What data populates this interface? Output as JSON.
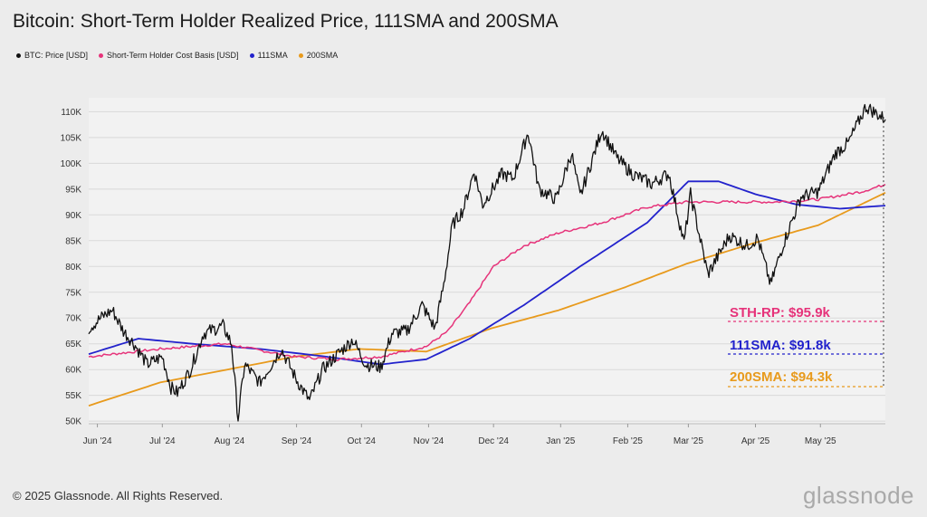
{
  "title": "Bitcoin: Short-Term Holder Realized Price, 111SMA and 200SMA",
  "legend": [
    {
      "label": "BTC: Price [USD]",
      "color": "#111111"
    },
    {
      "label": "Short-Term Holder Cost Basis [USD]",
      "color": "#e6337a"
    },
    {
      "label": "111SMA",
      "color": "#2222cc"
    },
    {
      "label": "200SMA",
      "color": "#e89a1c"
    }
  ],
  "watermark": "glassnode",
  "annotations": {
    "sth": "STH-RP: $95.9k",
    "sma111": "111SMA: $91.8k",
    "sma200": "200SMA: $94.3k"
  },
  "footer": "© 2025 Glassnode. All Rights Reserved.",
  "brand": "glassnode",
  "chart_data": {
    "type": "line",
    "y_tick_labels": [
      "50K",
      "55K",
      "60K",
      "65K",
      "70K",
      "75K",
      "80K",
      "85K",
      "90K",
      "95K",
      "100K",
      "105K",
      "110K"
    ],
    "y_ticks": [
      50000,
      55000,
      60000,
      65000,
      70000,
      75000,
      80000,
      85000,
      90000,
      95000,
      100000,
      105000,
      110000
    ],
    "ylim": [
      49500,
      112000
    ],
    "x_tick_labels": [
      "Jun '24",
      "Jul '24",
      "Aug '24",
      "Sep '24",
      "Oct '24",
      "Nov '24",
      "Dec '24",
      "Jan '25",
      "Feb '25",
      "Mar '25",
      "Apr '25",
      "May '25"
    ],
    "x_ticks": [
      "2024-06-01",
      "2024-07-01",
      "2024-08-01",
      "2024-09-01",
      "2024-10-01",
      "2024-11-01",
      "2024-12-01",
      "2025-01-01",
      "2025-02-01",
      "2025-03-01",
      "2025-04-01",
      "2025-05-01"
    ],
    "xlim": [
      "2024-05-28",
      "2025-05-31"
    ],
    "series": [
      {
        "name": "BTC: Price [USD]",
        "color": "#111111",
        "points": [
          [
            "2024-05-28",
            68000
          ],
          [
            "2024-06-04",
            70500
          ],
          [
            "2024-06-08",
            71500
          ],
          [
            "2024-06-13",
            67500
          ],
          [
            "2024-06-18",
            65000
          ],
          [
            "2024-06-24",
            61000
          ],
          [
            "2024-07-01",
            62500
          ],
          [
            "2024-07-05",
            56500
          ],
          [
            "2024-07-08",
            55500
          ],
          [
            "2024-07-14",
            60000
          ],
          [
            "2024-07-20",
            67000
          ],
          [
            "2024-07-29",
            68500
          ],
          [
            "2024-08-02",
            65000
          ],
          [
            "2024-08-05",
            50500
          ],
          [
            "2024-08-08",
            61000
          ],
          [
            "2024-08-15",
            57500
          ],
          [
            "2024-08-25",
            64000
          ],
          [
            "2024-09-01",
            58000
          ],
          [
            "2024-09-07",
            54000
          ],
          [
            "2024-09-13",
            60000
          ],
          [
            "2024-09-20",
            63000
          ],
          [
            "2024-09-27",
            65800
          ],
          [
            "2024-10-03",
            61000
          ],
          [
            "2024-10-10",
            60500
          ],
          [
            "2024-10-15",
            67000
          ],
          [
            "2024-10-22",
            67500
          ],
          [
            "2024-10-29",
            72500
          ],
          [
            "2024-11-04",
            68000
          ],
          [
            "2024-11-08",
            76500
          ],
          [
            "2024-11-12",
            88000
          ],
          [
            "2024-11-17",
            91000
          ],
          [
            "2024-11-22",
            98500
          ],
          [
            "2024-11-26",
            92000
          ],
          [
            "2024-12-05",
            98000
          ],
          [
            "2024-12-10",
            97000
          ],
          [
            "2024-12-17",
            106000
          ],
          [
            "2024-12-22",
            95000
          ],
          [
            "2024-12-30",
            93000
          ],
          [
            "2025-01-06",
            102000
          ],
          [
            "2025-01-10",
            93500
          ],
          [
            "2025-01-20",
            106500
          ],
          [
            "2025-01-27",
            101000
          ],
          [
            "2025-02-03",
            98000
          ],
          [
            "2025-02-12",
            96000
          ],
          [
            "2025-02-20",
            98000
          ],
          [
            "2025-02-27",
            84500
          ],
          [
            "2025-03-02",
            94000
          ],
          [
            "2025-03-10",
            78500
          ],
          [
            "2025-03-20",
            86000
          ],
          [
            "2025-03-28",
            84000
          ],
          [
            "2025-04-02",
            85500
          ],
          [
            "2025-04-08",
            76500
          ],
          [
            "2025-04-14",
            84500
          ],
          [
            "2025-04-22",
            93500
          ],
          [
            "2025-04-30",
            94500
          ],
          [
            "2025-05-08",
            102000
          ],
          [
            "2025-05-14",
            104000
          ],
          [
            "2025-05-22",
            111000
          ],
          [
            "2025-05-31",
            108500
          ]
        ]
      },
      {
        "name": "Short-Term Holder Cost Basis [USD]",
        "color": "#e6337a",
        "points": [
          [
            "2024-05-28",
            62500
          ],
          [
            "2024-06-30",
            64000
          ],
          [
            "2024-07-30",
            65000
          ],
          [
            "2024-08-31",
            62500
          ],
          [
            "2024-09-20",
            62000
          ],
          [
            "2024-10-10",
            62500
          ],
          [
            "2024-10-31",
            64500
          ],
          [
            "2024-11-10",
            67500
          ],
          [
            "2024-11-20",
            73000
          ],
          [
            "2024-12-01",
            80000
          ],
          [
            "2024-12-15",
            84000
          ],
          [
            "2024-12-31",
            86500
          ],
          [
            "2025-01-20",
            88500
          ],
          [
            "2025-02-10",
            91500
          ],
          [
            "2025-02-28",
            92500
          ],
          [
            "2025-03-20",
            92500
          ],
          [
            "2025-04-10",
            92500
          ],
          [
            "2025-04-30",
            93000
          ],
          [
            "2025-05-20",
            94500
          ],
          [
            "2025-05-31",
            95900
          ]
        ]
      },
      {
        "name": "111SMA",
        "color": "#2222cc",
        "points": [
          [
            "2024-05-28",
            63000
          ],
          [
            "2024-06-20",
            66000
          ],
          [
            "2024-07-15",
            65000
          ],
          [
            "2024-08-15",
            64000
          ],
          [
            "2024-09-15",
            62500
          ],
          [
            "2024-10-10",
            61000
          ],
          [
            "2024-10-31",
            62000
          ],
          [
            "2024-11-20",
            66000
          ],
          [
            "2024-12-15",
            72500
          ],
          [
            "2025-01-10",
            80000
          ],
          [
            "2025-02-10",
            88500
          ],
          [
            "2025-03-01",
            96500
          ],
          [
            "2025-03-15",
            96500
          ],
          [
            "2025-04-01",
            94000
          ],
          [
            "2025-04-20",
            92000
          ],
          [
            "2025-05-10",
            91200
          ],
          [
            "2025-05-31",
            91800
          ]
        ]
      },
      {
        "name": "200SMA",
        "color": "#e89a1c",
        "points": [
          [
            "2024-05-28",
            53000
          ],
          [
            "2024-06-30",
            57500
          ],
          [
            "2024-07-31",
            60000
          ],
          [
            "2024-08-31",
            62500
          ],
          [
            "2024-09-30",
            64000
          ],
          [
            "2024-10-31",
            63500
          ],
          [
            "2024-11-30",
            68000
          ],
          [
            "2024-12-31",
            71500
          ],
          [
            "2025-01-31",
            76000
          ],
          [
            "2025-02-28",
            80500
          ],
          [
            "2025-03-31",
            84500
          ],
          [
            "2025-04-30",
            88000
          ],
          [
            "2025-05-31",
            94300
          ]
        ]
      }
    ]
  }
}
